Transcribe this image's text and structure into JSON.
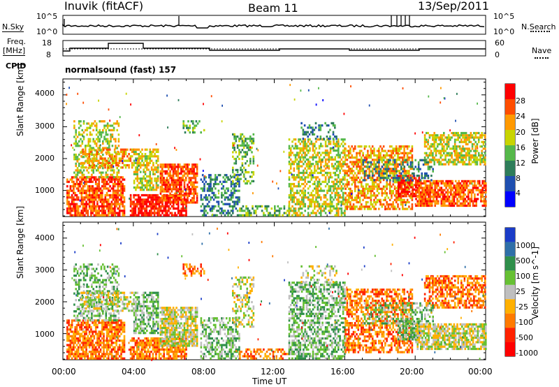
{
  "header": {
    "station": "Inuvik (fitACF)",
    "beam": "Beam 11",
    "date": "13/Sep/2011"
  },
  "side_labels": {
    "nsky": "N.Sky",
    "nsearch": "N.Search",
    "freq": "Freq.",
    "freq_unit": "[MHz]",
    "nave": "Nave",
    "cpid": "CPID"
  },
  "cpid_text": "normalsound (fast) 157",
  "noise_axis": {
    "left_top": "10^5",
    "left_bottom": "10^0",
    "right_top": "10^5",
    "right_bottom": "10^0"
  },
  "freq_axis": {
    "left_top": "18",
    "left_bottom": "8",
    "right_top": "60",
    "right_bottom": "0"
  },
  "colors": {
    "power_scale": [
      "#0000ff",
      "#1f4fb0",
      "#2e7d5a",
      "#55b84a",
      "#c8d400",
      "#ff9900",
      "#ff4d00",
      "#ff0000"
    ],
    "velocity_scale": [
      "#1a3cc8",
      "#2e6fa8",
      "#2f8f4a",
      "#66c033",
      "#bfbfbf",
      "#ffb000",
      "#ff7a00",
      "#ff2200",
      "#ff0000"
    ]
  },
  "chart_data": [
    {
      "type": "heatmap",
      "panel": "power",
      "ylabel": "Slant Range [km]",
      "y_ticks": [
        "4000",
        "3000",
        "2000",
        "1000"
      ],
      "ylim": [
        180,
        4500
      ],
      "xlim": [
        0,
        24
      ],
      "colorbar_label": "Power [dB]",
      "colorbar_ticks": [
        "28",
        "24",
        "20",
        "16",
        "12",
        "8",
        "4"
      ],
      "colorbar_range": [
        0,
        32
      ]
    },
    {
      "type": "heatmap",
      "panel": "velocity",
      "ylabel": "Slant Range [km]",
      "y_ticks": [
        "4000",
        "3000",
        "2000",
        "1000"
      ],
      "ylim": [
        180,
        4500
      ],
      "xlim": [
        0,
        24
      ],
      "x_ticks": [
        "00:00",
        "04:00",
        "08:00",
        "12:00",
        "16:00",
        "20:00",
        "00:00"
      ],
      "xlabel": "Time UT",
      "colorbar_label": "Velocity [m s^-1]",
      "colorbar_ticks": [
        "1000",
        "500",
        "100",
        "25",
        "-25",
        "-100",
        "-500",
        "-1000"
      ]
    }
  ]
}
